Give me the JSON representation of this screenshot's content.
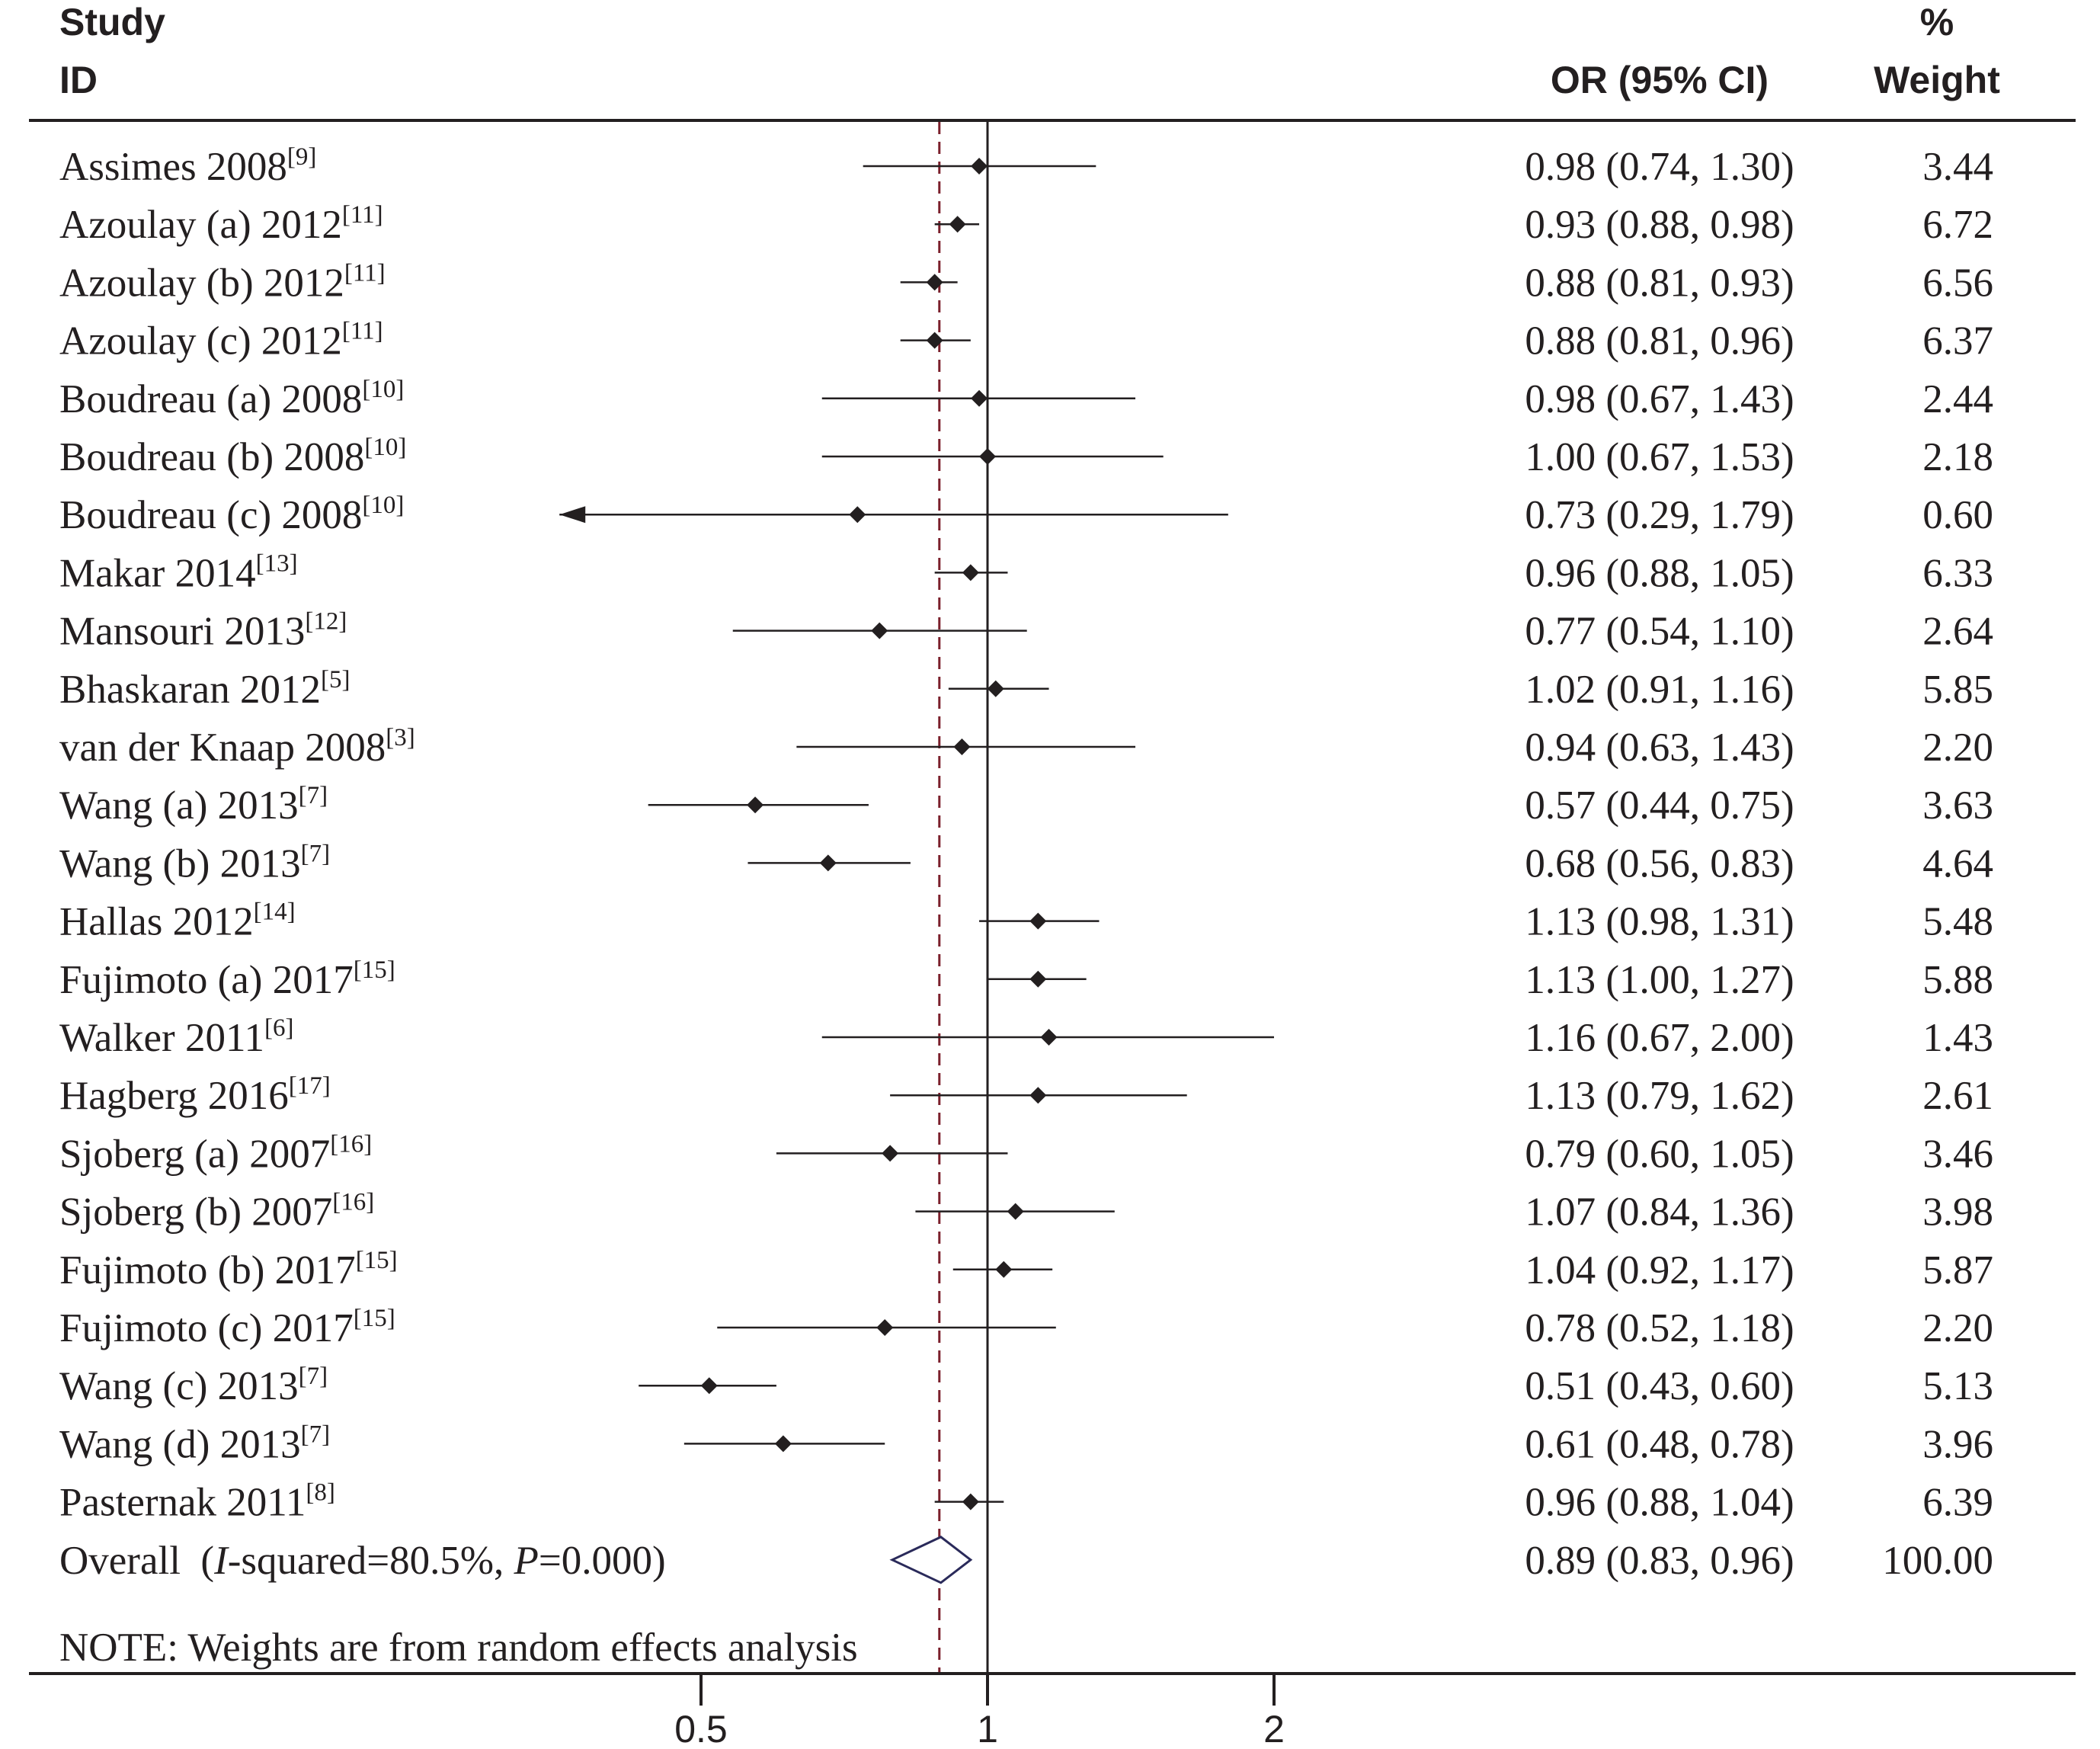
{
  "chart_data": {
    "type": "forest",
    "header": {
      "study_label_1": "Study",
      "study_label_2": "ID",
      "or_label": "OR (95% CI)",
      "weight_label_1": "%",
      "weight_label_2": "Weight"
    },
    "x_scale": "log",
    "xlim": [
      0.355,
      2.0
    ],
    "null_line": 1,
    "pooled_line": 0.89,
    "ticks": [
      {
        "value": 0.5,
        "label": "0.5"
      },
      {
        "value": 1,
        "label": "1"
      },
      {
        "value": 2,
        "label": "2"
      }
    ],
    "studies": [
      {
        "name": "Assimes 2008",
        "ref": "[9]",
        "or": 0.98,
        "lo": 0.74,
        "hi": 1.3,
        "or_text": "0.98 (0.74, 1.30)",
        "weight": "3.44"
      },
      {
        "name": "Azoulay (a) 2012",
        "ref": "[11]",
        "or": 0.93,
        "lo": 0.88,
        "hi": 0.98,
        "or_text": "0.93 (0.88, 0.98)",
        "weight": "6.72"
      },
      {
        "name": "Azoulay (b) 2012",
        "ref": "[11]",
        "or": 0.88,
        "lo": 0.81,
        "hi": 0.93,
        "or_text": "0.88 (0.81, 0.93)",
        "weight": "6.56"
      },
      {
        "name": "Azoulay (c) 2012",
        "ref": "[11]",
        "or": 0.88,
        "lo": 0.81,
        "hi": 0.96,
        "or_text": "0.88 (0.81, 0.96)",
        "weight": "6.37"
      },
      {
        "name": "Boudreau (a) 2008",
        "ref": "[10]",
        "or": 0.98,
        "lo": 0.67,
        "hi": 1.43,
        "or_text": "0.98 (0.67, 1.43)",
        "weight": "2.44"
      },
      {
        "name": "Boudreau (b) 2008",
        "ref": "[10]",
        "or": 1.0,
        "lo": 0.67,
        "hi": 1.53,
        "or_text": "1.00 (0.67, 1.53)",
        "weight": "2.18"
      },
      {
        "name": "Boudreau (c) 2008",
        "ref": "[10]",
        "or": 0.73,
        "lo": 0.29,
        "hi": 1.79,
        "or_text": "0.73 (0.29, 1.79)",
        "weight": "0.60"
      },
      {
        "name": "Makar 2014",
        "ref": "[13]",
        "or": 0.96,
        "lo": 0.88,
        "hi": 1.05,
        "or_text": "0.96 (0.88, 1.05)",
        "weight": "6.33"
      },
      {
        "name": "Mansouri 2013",
        "ref": "[12]",
        "or": 0.77,
        "lo": 0.54,
        "hi": 1.1,
        "or_text": "0.77 (0.54, 1.10)",
        "weight": "2.64"
      },
      {
        "name": "Bhaskaran 2012",
        "ref": "[5]",
        "or": 1.02,
        "lo": 0.91,
        "hi": 1.16,
        "or_text": "1.02 (0.91, 1.16)",
        "weight": "5.85"
      },
      {
        "name": "van der Knaap 2008",
        "ref": "[3]",
        "or": 0.94,
        "lo": 0.63,
        "hi": 1.43,
        "or_text": "0.94 (0.63, 1.43)",
        "weight": "2.20"
      },
      {
        "name": "Wang (a) 2013",
        "ref": "[7]",
        "or": 0.57,
        "lo": 0.44,
        "hi": 0.75,
        "or_text": "0.57 (0.44, 0.75)",
        "weight": "3.63"
      },
      {
        "name": "Wang (b) 2013",
        "ref": "[7]",
        "or": 0.68,
        "lo": 0.56,
        "hi": 0.83,
        "or_text": "0.68 (0.56, 0.83)",
        "weight": "4.64"
      },
      {
        "name": "Hallas 2012",
        "ref": "[14]",
        "or": 1.13,
        "lo": 0.98,
        "hi": 1.31,
        "or_text": "1.13 (0.98, 1.31)",
        "weight": "5.48"
      },
      {
        "name": "Fujimoto (a) 2017",
        "ref": "[15]",
        "or": 1.13,
        "lo": 1.0,
        "hi": 1.27,
        "or_text": "1.13 (1.00, 1.27)",
        "weight": "5.88"
      },
      {
        "name": "Walker 2011",
        "ref": "[6]",
        "or": 1.16,
        "lo": 0.67,
        "hi": 2.0,
        "or_text": "1.16 (0.67, 2.00)",
        "weight": "1.43"
      },
      {
        "name": "Hagberg 2016",
        "ref": "[17]",
        "or": 1.13,
        "lo": 0.79,
        "hi": 1.62,
        "or_text": "1.13 (0.79, 1.62)",
        "weight": "2.61"
      },
      {
        "name": "Sjoberg (a) 2007",
        "ref": "[16]",
        "or": 0.79,
        "lo": 0.6,
        "hi": 1.05,
        "or_text": "0.79 (0.60, 1.05)",
        "weight": "3.46"
      },
      {
        "name": "Sjoberg (b) 2007",
        "ref": "[16]",
        "or": 1.07,
        "lo": 0.84,
        "hi": 1.36,
        "or_text": "1.07 (0.84, 1.36)",
        "weight": "3.98"
      },
      {
        "name": "Fujimoto (b) 2017",
        "ref": "[15]",
        "or": 1.04,
        "lo": 0.92,
        "hi": 1.17,
        "or_text": "1.04 (0.92, 1.17)",
        "weight": "5.87"
      },
      {
        "name": "Fujimoto (c) 2017",
        "ref": "[15]",
        "or": 0.78,
        "lo": 0.52,
        "hi": 1.18,
        "or_text": "0.78 (0.52, 1.18)",
        "weight": "2.20"
      },
      {
        "name": "Wang (c) 2013",
        "ref": "[7]",
        "or": 0.51,
        "lo": 0.43,
        "hi": 0.6,
        "or_text": "0.51 (0.43, 0.60)",
        "weight": "5.13"
      },
      {
        "name": "Wang (d) 2013",
        "ref": "[7]",
        "or": 0.61,
        "lo": 0.48,
        "hi": 0.78,
        "or_text": "0.61 (0.48, 0.78)",
        "weight": "3.96"
      },
      {
        "name": "Pasternak 2011",
        "ref": "[8]",
        "or": 0.96,
        "lo": 0.88,
        "hi": 1.04,
        "or_text": "0.96 (0.88, 1.04)",
        "weight": "6.39"
      }
    ],
    "overall": {
      "label_prefix": "Overall  (",
      "i_label": "I",
      "i_text": "-squared=80.5%, ",
      "p_label": "P",
      "p_text": "=0.000)",
      "or": 0.89,
      "lo": 0.83,
      "hi": 0.96,
      "or_text": "0.89 (0.83, 0.96)",
      "weight": "100.00"
    },
    "note": "NOTE: Weights are from random effects analysis",
    "colors": {
      "ink": "#231f20",
      "pooled_line": "#7a1f2b",
      "overall_diamond": "#2a2a5a"
    }
  }
}
